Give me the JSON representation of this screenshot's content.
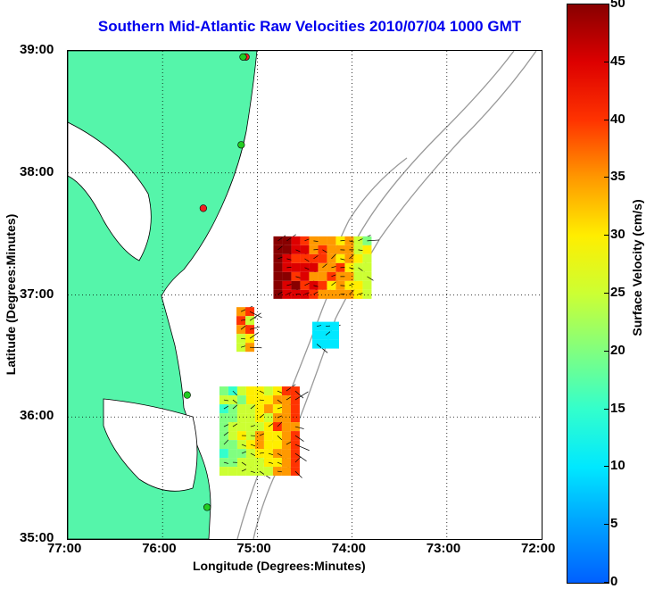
{
  "title": "Southern Mid-Atlantic Raw Velocities 2010/07/04 1000 GMT",
  "x_axis": {
    "label": "Longitude (Degrees:Minutes)",
    "ticks": [
      "77:00",
      "76:00",
      "75:00",
      "74:00",
      "73:00",
      "72:00"
    ]
  },
  "y_axis": {
    "label": "Latitude (Degrees:Minutes)",
    "ticks": [
      "39:00",
      "38:00",
      "37:00",
      "36:00",
      "35:00"
    ]
  },
  "colorbar": {
    "label": "Surface Velocity (cm/s)",
    "ticks": [
      "0",
      "5",
      "10",
      "15",
      "20",
      "25",
      "30",
      "35",
      "40",
      "45",
      "50"
    ],
    "min": 0,
    "max": 50
  },
  "colors": {
    "land": "#55f5aa",
    "title": "#0000ee",
    "bathymetry": "#999999",
    "station_active": "#22cc22",
    "station_inactive": "#ee2222"
  },
  "map_extent": {
    "lon_west": -77,
    "lon_east": -72,
    "lat_south": 35,
    "lat_north": 39
  },
  "stations": [
    {
      "lon": -75.12,
      "lat": 38.95,
      "status": "inactive"
    },
    {
      "lon": -75.15,
      "lat": 38.95,
      "status": "active"
    },
    {
      "lon": -75.17,
      "lat": 38.23,
      "status": "active"
    },
    {
      "lon": -75.57,
      "lat": 37.71,
      "status": "inactive"
    },
    {
      "lon": -75.74,
      "lat": 36.18,
      "status": "active"
    },
    {
      "lon": -75.53,
      "lat": 35.26,
      "status": "active"
    }
  ],
  "velocity_regions": [
    {
      "name": "north-cluster",
      "lon_min": -74.83,
      "lon_max": -73.83,
      "lat_min": 37.0,
      "lat_max": 37.48
    },
    {
      "name": "mid-strip",
      "lon_min": -75.22,
      "lon_max": -75.05,
      "lat_min": 36.55,
      "lat_max": 36.9
    },
    {
      "name": "small-patch",
      "lon_min": -74.42,
      "lon_max": -74.2,
      "lat_min": 36.62,
      "lat_max": 36.78
    },
    {
      "name": "south-cluster",
      "lon_min": -75.4,
      "lon_max": -74.6,
      "lat_min": 35.52,
      "lat_max": 36.25
    }
  ]
}
